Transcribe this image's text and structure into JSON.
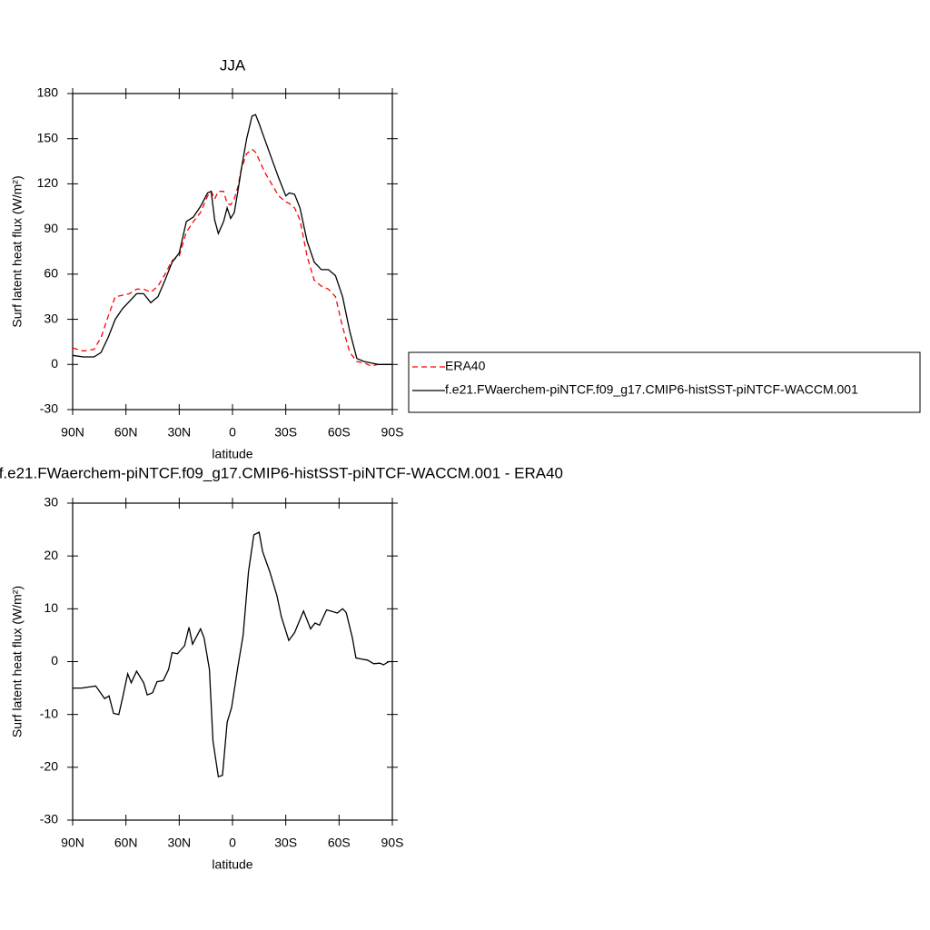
{
  "chart_data": [
    {
      "type": "line",
      "title": "JJA",
      "xlabel": "latitude",
      "ylabel": "Surf latent heat flux (W/m²)",
      "x": [
        90,
        84,
        78,
        74,
        70,
        66,
        62,
        58,
        54,
        50,
        46,
        42,
        38,
        34,
        30,
        26,
        22,
        18,
        14,
        12,
        10,
        8,
        5,
        3,
        1,
        -1,
        -3,
        -5,
        -8,
        -11,
        -13,
        -15,
        -18,
        -22,
        -26,
        -30,
        -32,
        -35,
        -38,
        -42,
        -46,
        -50,
        -54,
        -58,
        -62,
        -66,
        -70,
        -74,
        -78,
        -82,
        -86,
        -90
      ],
      "series": [
        {
          "name": "ERA40",
          "color": "#ff0000",
          "linestyle": "dashed",
          "values": [
            11,
            9,
            10,
            18,
            32,
            45,
            46,
            47,
            50,
            50,
            48,
            52,
            60,
            69,
            72,
            88,
            95,
            101,
            112,
            115,
            110,
            115,
            115,
            107,
            106,
            110,
            118,
            130,
            140,
            143,
            141,
            136,
            128,
            120,
            112,
            108,
            107,
            104,
            96,
            72,
            56,
            52,
            50,
            45,
            25,
            8,
            2,
            1,
            -1,
            0,
            0,
            0
          ]
        },
        {
          "name": "f.e21.FWaerchem-piNTCF.f09_g17.CMIP6-histSST-piNTCF-WACCM.001",
          "color": "#000000",
          "linestyle": "solid",
          "values": [
            6,
            5,
            5,
            8,
            18,
            30,
            37,
            42,
            47,
            47,
            41,
            45,
            56,
            68,
            74,
            95,
            98,
            105,
            114,
            115,
            96,
            87,
            95,
            104,
            97,
            101,
            115,
            130,
            150,
            165,
            166,
            160,
            150,
            137,
            124,
            112,
            114,
            113,
            104,
            82,
            68,
            63,
            63,
            59,
            45,
            22,
            4,
            2,
            1,
            0,
            0,
            0
          ]
        }
      ],
      "xlim": [
        90,
        -90
      ],
      "xticks": [
        {
          "value": 90,
          "label": "90N"
        },
        {
          "value": 60,
          "label": "60N"
        },
        {
          "value": 30,
          "label": "30N"
        },
        0,
        {
          "value": -30,
          "label": "30S"
        },
        {
          "value": -60,
          "label": "60S"
        },
        {
          "value": -90,
          "label": "90S"
        }
      ],
      "ylim": [
        -30,
        180
      ],
      "yticks": [
        -30,
        0,
        30,
        60,
        90,
        120,
        150,
        180
      ],
      "legend": "right"
    },
    {
      "type": "line",
      "title": "f.e21.FWaerchem-piNTCF.f09_g17.CMIP6-histSST-piNTCF-WACCM.001 - ERA40",
      "xlabel": "latitude",
      "ylabel": "Surf latent heat flux (W/m²)",
      "x": [
        90,
        85,
        77,
        72,
        69.5,
        67,
        64,
        62,
        59,
        57,
        54,
        50,
        48,
        45,
        42.5,
        39,
        36,
        34,
        31,
        27,
        24.5,
        22.5,
        18,
        16,
        13,
        11,
        8,
        5.6,
        3,
        0.5,
        -3,
        -6,
        -9,
        -12,
        -15,
        -17,
        -21,
        -25,
        -27.5,
        -31.7,
        -35,
        -40,
        -44,
        -46.5,
        -49,
        -53,
        -57,
        -59,
        -62,
        -64,
        -67.5,
        -69.5,
        -72.5,
        -76,
        -79.5,
        -83,
        -85,
        -88,
        -90
      ],
      "values": [
        -5,
        -5,
        -4.6,
        -7,
        -6.5,
        -9.8,
        -10,
        -7,
        -2.3,
        -4,
        -1.8,
        -4,
        -6.3,
        -5.9,
        -3.8,
        -3.6,
        -1.5,
        1.7,
        1.5,
        3,
        6.5,
        3.3,
        6.2,
        4.5,
        -1.5,
        -15,
        -21.8,
        -21.5,
        -11.5,
        -8.7,
        -1,
        5,
        17,
        24,
        24.5,
        20.8,
        17,
        12.5,
        8.5,
        4,
        5.5,
        9.6,
        6.2,
        7.3,
        6.9,
        9.8,
        9.4,
        9.2,
        10,
        9.3,
        4.5,
        0.7,
        0.5,
        0.3,
        -0.4,
        -0.3,
        -0.6,
        0,
        0
      ],
      "color": "#000000",
      "xlim": [
        90,
        -90
      ],
      "xticks": [
        {
          "value": 90,
          "label": "90N"
        },
        {
          "value": 60,
          "label": "60N"
        },
        {
          "value": 30,
          "label": "30N"
        },
        0,
        {
          "value": -30,
          "label": "30S"
        },
        {
          "value": -60,
          "label": "60S"
        },
        {
          "value": -90,
          "label": "90S"
        }
      ],
      "ylim": [
        -30,
        30
      ],
      "yticks": [
        -30,
        -20,
        -10,
        0,
        10,
        20,
        30
      ]
    }
  ]
}
